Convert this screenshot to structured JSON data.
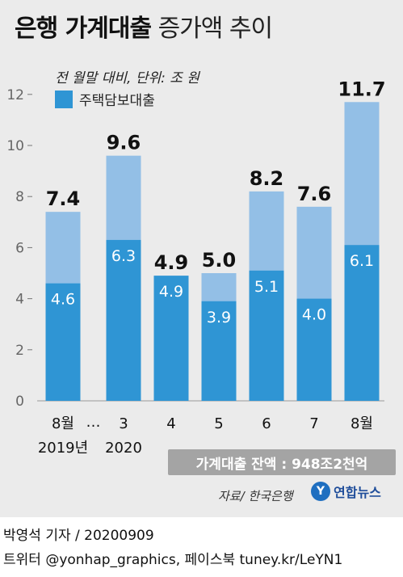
{
  "header": {
    "title_bold": "은행 가계대출",
    "title_light": "증가액 추이",
    "subtitle": "전 월말 대비, 단위: 조 원"
  },
  "legend": {
    "label": "주택담보대출"
  },
  "footer": {
    "balance_text": "가계대출 잔액 : 948조2천억",
    "source": "자료/ 한국은행",
    "logo_mark": "Y",
    "logo_name": "연합뉴스",
    "byline": "박영석 기자 / 20200909",
    "twitter": "트위터 @yonhap_graphics, 페이스북 tuney.kr/LeYN1"
  },
  "colors": {
    "total": "#93bfe6",
    "mortgage": "#2f95d4",
    "background": "#ebebeb"
  },
  "chart_data": {
    "type": "bar",
    "title": "은행 가계대출 증가액 추이",
    "subtitle": "전 월말 대비, 단위: 조 원",
    "categories": [
      "8월",
      "3",
      "4",
      "5",
      "6",
      "7",
      "8월"
    ],
    "category_sublabels": [
      "2019년",
      "2020",
      "",
      "",
      "",
      "",
      ""
    ],
    "gap_marker": "…",
    "series": [
      {
        "name": "가계대출",
        "values": [
          7.4,
          9.6,
          4.9,
          5.0,
          8.2,
          7.6,
          11.7
        ],
        "color": "#93bfe6"
      },
      {
        "name": "주택담보대출",
        "values": [
          4.6,
          6.3,
          4.9,
          3.9,
          5.1,
          4.0,
          6.1
        ],
        "color": "#2f95d4"
      }
    ],
    "total_labels": [
      "7.4",
      "9.6",
      "4.9",
      "5.0",
      "8.2",
      "7.6",
      "11.7"
    ],
    "mortgage_labels": [
      "4.6",
      "6.3",
      "4.9",
      "3.9",
      "5.1",
      "4.0",
      "6.1"
    ],
    "yticks": [
      "0",
      "2",
      "4",
      "6",
      "8",
      "10",
      "12"
    ],
    "ylim": [
      0,
      12
    ],
    "grid": false,
    "legend_position": "top-left"
  }
}
